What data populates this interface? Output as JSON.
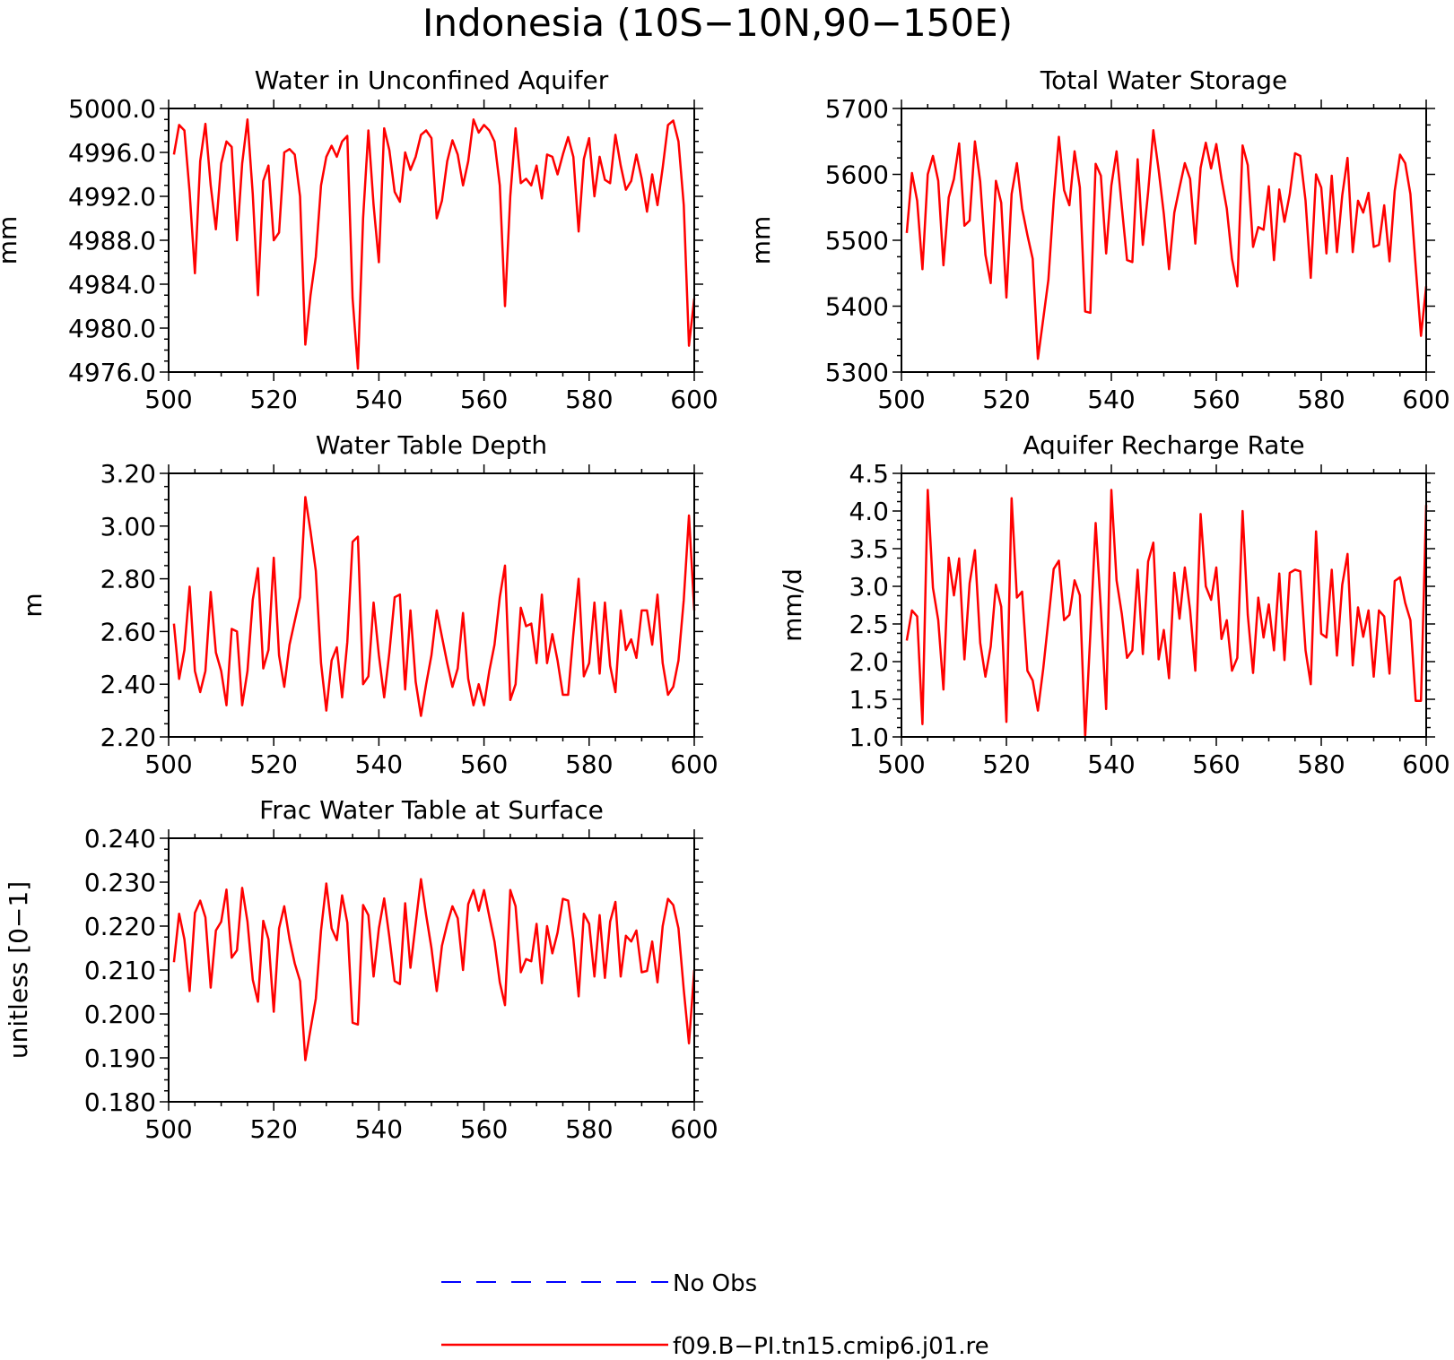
{
  "figure": {
    "title": "Indonesia (10S−10N,90−150E)"
  },
  "legend": [
    {
      "label": "No Obs",
      "color": "#0000ff",
      "dashed": true
    },
    {
      "label": "f09.B−PI.tn15.cmip6.j01.re",
      "color": "#ff0000",
      "dashed": false
    }
  ],
  "chart_data": [
    {
      "type": "line",
      "title": "Water in Unconfined Aquifer",
      "ylabel": "mm",
      "xlim": [
        500,
        600
      ],
      "ylim": [
        4976,
        5000
      ],
      "xticks": [
        500,
        520,
        540,
        560,
        580,
        600
      ],
      "yticks": [
        4976,
        4980,
        4984,
        4988,
        4992,
        4996,
        5000
      ],
      "ytick_labels": [
        "4976.0",
        "4980.0",
        "4984.0",
        "4988.0",
        "4992.0",
        "4996.0",
        "5000.0"
      ],
      "grid": false,
      "series": [
        {
          "name": "f09.B−PI.tn15.cmip6.j01.re",
          "color": "#ff0000",
          "x_start": 501,
          "x_step": 1,
          "values": [
            4995.8,
            4998.5,
            4998.0,
            4992.4,
            4985.0,
            4995.2,
            4998.6,
            4993.0,
            4989.0,
            4995.0,
            4997.0,
            4996.5,
            4988.0,
            4995.0,
            4999.0,
            4992.2,
            4983.0,
            4993.4,
            4994.8,
            4988.0,
            4988.7,
            4996.0,
            4996.3,
            4995.8,
            4992.0,
            4978.5,
            4983.0,
            4986.5,
            4993.0,
            4995.6,
            4996.6,
            4995.6,
            4997.0,
            4997.5,
            4982.7,
            4976.3,
            4990.0,
            4998.0,
            4991.2,
            4986.0,
            4998.2,
            4996.2,
            4992.4,
            4991.5,
            4996.0,
            4994.4,
            4995.6,
            4997.6,
            4998.0,
            4997.3,
            4990.0,
            4991.6,
            4995.2,
            4997.1,
            4995.8,
            4993.0,
            4995.2,
            4999.0,
            4997.8,
            4998.5,
            4998.0,
            4997.0,
            4993.0,
            4982.0,
            4992.0,
            4998.2,
            4993.2,
            4993.6,
            4993.0,
            4994.8,
            4991.8,
            4995.8,
            4995.6,
            4994.0,
            4995.8,
            4997.4,
            4995.6,
            4988.8,
            4995.4,
            4997.3,
            4992.0,
            4995.6,
            4993.5,
            4993.2,
            4997.6,
            4994.8,
            4992.6,
            4993.4,
            4995.8,
            4993.6,
            4990.6,
            4994.0,
            4991.2,
            4994.6,
            4998.5,
            4998.9,
            4997.0,
            4991.2,
            4978.4,
            4982.7
          ]
        }
      ]
    },
    {
      "type": "line",
      "title": "Total Water Storage",
      "ylabel": "mm",
      "xlim": [
        500,
        600
      ],
      "ylim": [
        5300,
        5700
      ],
      "xticks": [
        500,
        520,
        540,
        560,
        580,
        600
      ],
      "yticks": [
        5300,
        5400,
        5500,
        5600,
        5700
      ],
      "ytick_labels": [
        "5300",
        "5400",
        "5500",
        "5600",
        "5700"
      ],
      "grid": false,
      "series": [
        {
          "name": "f09.B−PI.tn15.cmip6.j01.re",
          "color": "#ff0000",
          "x_start": 501,
          "x_step": 1,
          "values": [
            5511,
            5602,
            5560,
            5456,
            5600,
            5628,
            5590,
            5462,
            5565,
            5593,
            5647,
            5522,
            5530,
            5650,
            5589,
            5478,
            5435,
            5590,
            5557,
            5413,
            5570,
            5617,
            5548,
            5508,
            5472,
            5320,
            5380,
            5440,
            5560,
            5657,
            5576,
            5553,
            5635,
            5580,
            5392,
            5390,
            5616,
            5598,
            5480,
            5583,
            5635,
            5550,
            5470,
            5467,
            5623,
            5493,
            5573,
            5667,
            5607,
            5540,
            5456,
            5542,
            5580,
            5617,
            5593,
            5495,
            5610,
            5648,
            5609,
            5646,
            5593,
            5548,
            5472,
            5430,
            5644,
            5614,
            5490,
            5520,
            5516,
            5582,
            5470,
            5577,
            5528,
            5570,
            5632,
            5628,
            5560,
            5443,
            5600,
            5580,
            5480,
            5598,
            5482,
            5568,
            5625,
            5482,
            5560,
            5542,
            5572,
            5490,
            5493,
            5553,
            5468,
            5575,
            5630,
            5617,
            5570,
            5460,
            5355,
            5430
          ]
        }
      ]
    },
    {
      "type": "line",
      "title": "Water Table Depth",
      "ylabel": "m",
      "xlim": [
        500,
        600
      ],
      "ylim": [
        2.2,
        3.2
      ],
      "xticks": [
        500,
        520,
        540,
        560,
        580,
        600
      ],
      "yticks": [
        2.2,
        2.4,
        2.6,
        2.8,
        3.0,
        3.2
      ],
      "ytick_labels": [
        "2.20",
        "2.40",
        "2.60",
        "2.80",
        "3.00",
        "3.20"
      ],
      "grid": false,
      "series": [
        {
          "name": "f09.B−PI.tn15.cmip6.j01.re",
          "color": "#ff0000",
          "x_start": 501,
          "x_step": 1,
          "values": [
            2.63,
            2.42,
            2.53,
            2.77,
            2.45,
            2.37,
            2.45,
            2.75,
            2.52,
            2.45,
            2.32,
            2.61,
            2.6,
            2.32,
            2.45,
            2.72,
            2.84,
            2.46,
            2.53,
            2.88,
            2.51,
            2.39,
            2.55,
            2.64,
            2.73,
            3.11,
            2.98,
            2.83,
            2.48,
            2.3,
            2.49,
            2.54,
            2.35,
            2.56,
            2.94,
            2.96,
            2.4,
            2.43,
            2.71,
            2.51,
            2.35,
            2.52,
            2.73,
            2.74,
            2.38,
            2.68,
            2.41,
            2.28,
            2.4,
            2.51,
            2.68,
            2.58,
            2.48,
            2.39,
            2.46,
            2.67,
            2.42,
            2.32,
            2.4,
            2.32,
            2.45,
            2.55,
            2.73,
            2.85,
            2.34,
            2.4,
            2.69,
            2.62,
            2.63,
            2.48,
            2.74,
            2.48,
            2.59,
            2.49,
            2.36,
            2.36,
            2.59,
            2.8,
            2.43,
            2.48,
            2.71,
            2.44,
            2.71,
            2.47,
            2.37,
            2.68,
            2.53,
            2.57,
            2.5,
            2.68,
            2.68,
            2.55,
            2.74,
            2.48,
            2.36,
            2.39,
            2.49,
            2.72,
            3.04,
            2.68
          ]
        }
      ]
    },
    {
      "type": "line",
      "title": "Aquifer Recharge Rate",
      "ylabel": "mm/d",
      "xlim": [
        500,
        600
      ],
      "ylim": [
        1.0,
        4.5
      ],
      "xticks": [
        500,
        520,
        540,
        560,
        580,
        600
      ],
      "yticks": [
        1.0,
        1.5,
        2.0,
        2.5,
        3.0,
        3.5,
        4.0,
        4.5
      ],
      "ytick_labels": [
        "1.0",
        "1.5",
        "2.0",
        "2.5",
        "3.0",
        "3.5",
        "4.0",
        "4.5"
      ],
      "grid": false,
      "series": [
        {
          "name": "f09.B−PI.tn15.cmip6.j01.re",
          "color": "#ff0000",
          "x_start": 501,
          "x_step": 1,
          "values": [
            2.28,
            2.68,
            2.6,
            1.17,
            4.28,
            2.98,
            2.55,
            1.63,
            3.38,
            2.88,
            3.37,
            2.03,
            3.04,
            3.48,
            2.25,
            1.8,
            2.2,
            3.02,
            2.73,
            1.2,
            4.17,
            2.85,
            2.93,
            1.88,
            1.75,
            1.35,
            1.9,
            2.55,
            3.23,
            3.34,
            2.55,
            2.62,
            3.08,
            2.88,
            1.0,
            2.37,
            3.84,
            2.7,
            1.37,
            4.28,
            3.08,
            2.63,
            2.05,
            2.15,
            3.22,
            2.1,
            3.33,
            3.58,
            2.03,
            2.42,
            1.78,
            3.18,
            2.57,
            3.25,
            2.68,
            1.88,
            3.96,
            3.0,
            2.82,
            3.25,
            2.3,
            2.55,
            1.88,
            2.05,
            4.0,
            2.62,
            1.85,
            2.85,
            2.32,
            2.76,
            2.15,
            3.17,
            2.02,
            3.18,
            3.22,
            3.2,
            2.15,
            1.7,
            3.73,
            2.37,
            2.32,
            3.22,
            2.08,
            3.02,
            3.43,
            1.95,
            2.72,
            2.33,
            2.68,
            1.8,
            2.68,
            2.6,
            1.84,
            3.07,
            3.12,
            2.78,
            2.55,
            1.48,
            1.48,
            4.08
          ]
        }
      ]
    },
    {
      "type": "line",
      "title": "Frac Water Table at Surface",
      "ylabel": "unitless [0−1]",
      "xlim": [
        500,
        600
      ],
      "ylim": [
        0.18,
        0.24
      ],
      "xticks": [
        500,
        520,
        540,
        560,
        580,
        600
      ],
      "yticks": [
        0.18,
        0.19,
        0.2,
        0.21,
        0.22,
        0.23,
        0.24
      ],
      "ytick_labels": [
        "0.180",
        "0.190",
        "0.200",
        "0.210",
        "0.220",
        "0.230",
        "0.240"
      ],
      "grid": false,
      "series": [
        {
          "name": "f09.B−PI.tn15.cmip6.j01.re",
          "color": "#ff0000",
          "x_start": 501,
          "x_step": 1,
          "values": [
            0.2118,
            0.2228,
            0.217,
            0.2052,
            0.223,
            0.2258,
            0.222,
            0.206,
            0.219,
            0.221,
            0.2283,
            0.2128,
            0.2145,
            0.2287,
            0.221,
            0.2078,
            0.2028,
            0.2212,
            0.217,
            0.2005,
            0.2195,
            0.2245,
            0.217,
            0.2115,
            0.2075,
            0.1895,
            0.1965,
            0.2035,
            0.219,
            0.2297,
            0.2195,
            0.2168,
            0.227,
            0.2208,
            0.198,
            0.1976,
            0.2248,
            0.2225,
            0.2085,
            0.2195,
            0.2263,
            0.2175,
            0.2075,
            0.2068,
            0.2252,
            0.2105,
            0.2205,
            0.2307,
            0.2225,
            0.215,
            0.2052,
            0.2155,
            0.2205,
            0.2245,
            0.2218,
            0.21,
            0.225,
            0.2282,
            0.2235,
            0.2282,
            0.2222,
            0.2165,
            0.2072,
            0.202,
            0.2282,
            0.2245,
            0.2095,
            0.2125,
            0.212,
            0.2205,
            0.207,
            0.22,
            0.2138,
            0.2185,
            0.2262,
            0.2258,
            0.217,
            0.204,
            0.2228,
            0.2205,
            0.2085,
            0.2225,
            0.2082,
            0.221,
            0.2255,
            0.2085,
            0.2178,
            0.2165,
            0.219,
            0.2095,
            0.2098,
            0.2165,
            0.2072,
            0.22,
            0.2262,
            0.2248,
            0.2195,
            0.2055,
            0.1933,
            0.21
          ]
        }
      ]
    }
  ]
}
